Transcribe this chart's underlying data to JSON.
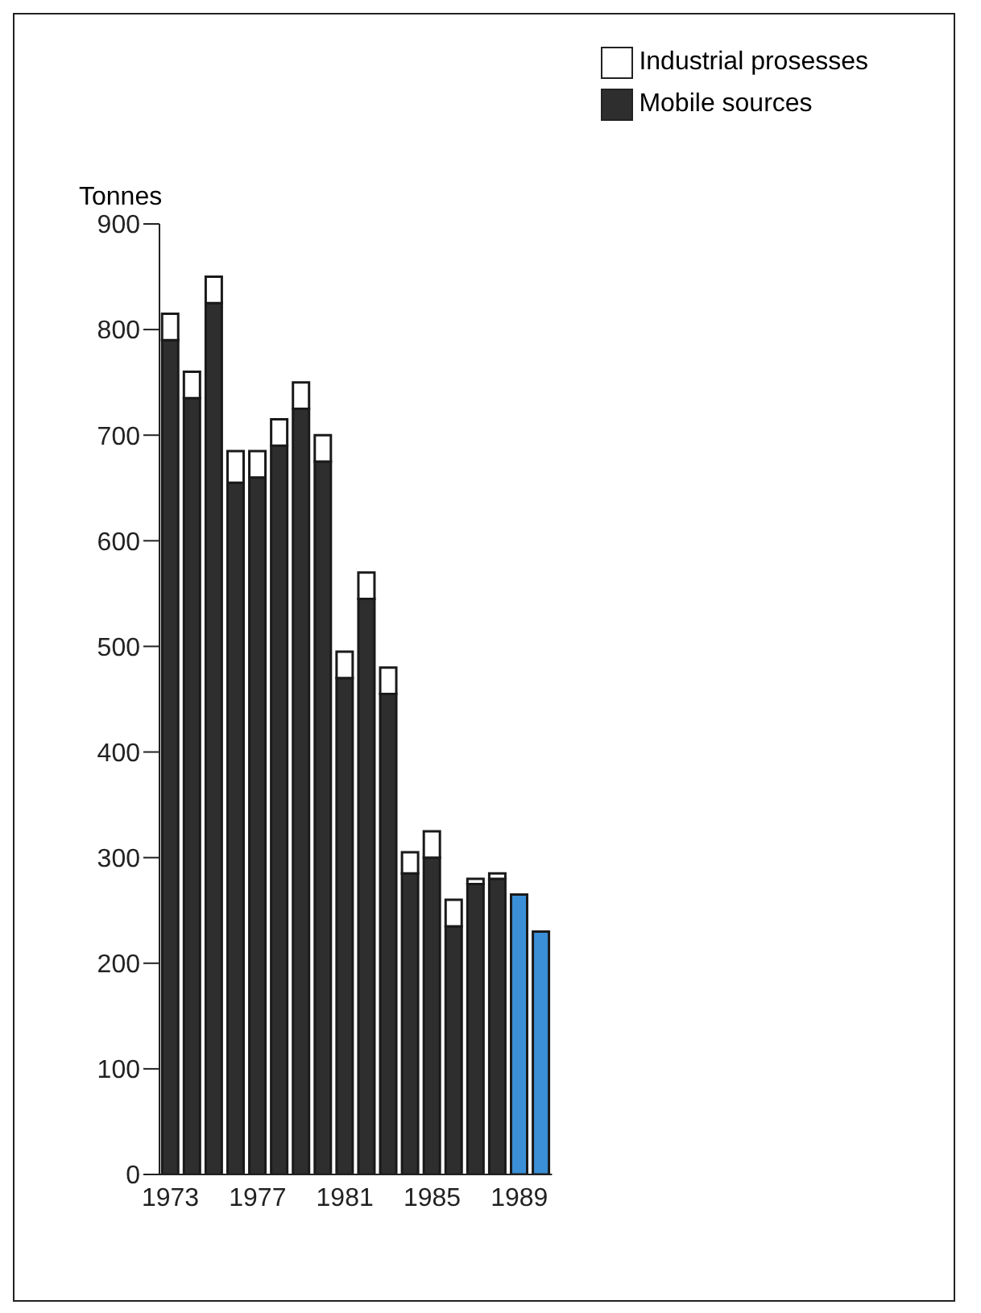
{
  "chart_data": {
    "type": "bar",
    "stacked": true,
    "ylabel": "Tonnes",
    "categories": [
      "1973",
      null,
      null,
      null,
      "1977",
      null,
      null,
      null,
      "1981",
      null,
      null,
      null,
      "1985",
      null,
      null,
      null,
      "1989",
      null
    ],
    "series": [
      {
        "name": "Mobile sources",
        "color": "#2e2e2e",
        "colors": [
          "#2e2e2e",
          "#2e2e2e",
          "#2e2e2e",
          "#2e2e2e",
          "#2e2e2e",
          "#2e2e2e",
          "#2e2e2e",
          "#2e2e2e",
          "#2e2e2e",
          "#2e2e2e",
          "#2e2e2e",
          "#2e2e2e",
          "#2e2e2e",
          "#2e2e2e",
          "#2e2e2e",
          "#2e2e2e",
          "#3b8fd6",
          "#3b8fd6"
        ],
        "values": [
          790,
          735,
          825,
          655,
          660,
          690,
          725,
          675,
          470,
          545,
          455,
          285,
          300,
          235,
          275,
          280,
          265,
          230
        ]
      },
      {
        "name": "Industrial prosesses",
        "color": "#ffffff",
        "values": [
          25,
          25,
          25,
          30,
          25,
          25,
          25,
          25,
          25,
          25,
          25,
          20,
          25,
          25,
          5,
          5,
          null,
          null
        ]
      }
    ],
    "ylim": [
      0,
      900
    ],
    "yticks": [
      0,
      100,
      200,
      300,
      400,
      500,
      600,
      700,
      800,
      900
    ],
    "grid": false,
    "legend": "top right"
  }
}
